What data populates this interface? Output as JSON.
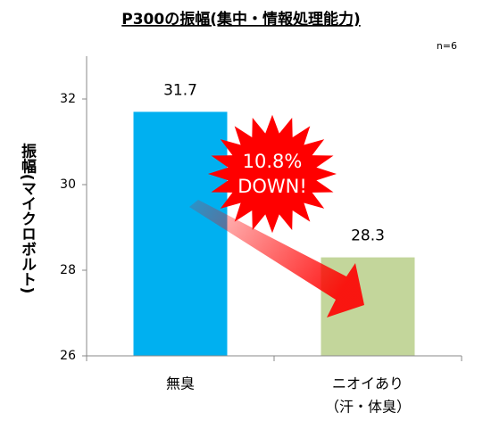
{
  "chart_data": {
    "type": "bar",
    "title": "P300の振幅(集中・情報処理能力)",
    "annotation": "n=6",
    "y_label": "振幅(マイクロボルト)",
    "categories": [
      "無臭",
      "ニオイあり"
    ],
    "category_sublabels": [
      null,
      "（汗・体臭）"
    ],
    "values": [
      31.7,
      28.3
    ],
    "colors": [
      "#00b0f0",
      "#c3d69b"
    ],
    "burst_text": [
      "10.8%",
      "DOWN!"
    ],
    "burst_color": "#ff0000",
    "ylim": [
      26,
      33
    ],
    "yticks": [
      26,
      28,
      30,
      32
    ],
    "grid": false
  }
}
